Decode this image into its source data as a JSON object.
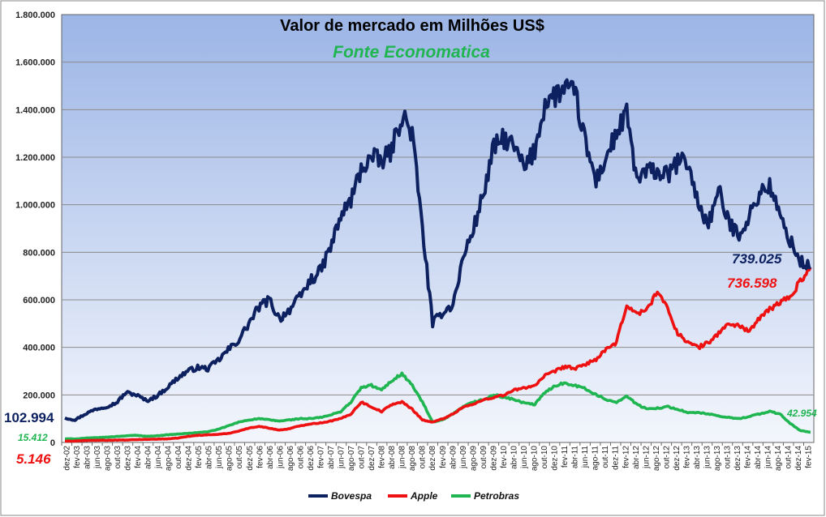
{
  "chart_data": {
    "type": "line",
    "title": "Valor de mercado em Milhões US$",
    "subtitle": "Fonte Economatica",
    "xlabel": "",
    "ylabel": "",
    "ylim": [
      0,
      1800000
    ],
    "y_ticks": [
      0,
      200000,
      400000,
      600000,
      800000,
      1000000,
      1200000,
      1400000,
      1600000,
      1800000
    ],
    "y_tick_labels": [
      "0",
      "200.000",
      "400.000",
      "600.000",
      "800.000",
      "1.000.000",
      "1.200.000",
      "1.400.000",
      "1.600.000",
      "1.800.000"
    ],
    "x_tick_labels": [
      "dez-02",
      "fev-03",
      "abr-03",
      "jun-03",
      "ago-03",
      "out-03",
      "dez-03",
      "fev-04",
      "abr-04",
      "jun-04",
      "ago-04",
      "out-04",
      "dez-04",
      "fev-05",
      "abr-05",
      "jun-05",
      "ago-05",
      "out-05",
      "dez-05",
      "fev-06",
      "abr-06",
      "jun-06",
      "ago-06",
      "out-06",
      "dez-06",
      "fev-07",
      "abr-07",
      "jun-07",
      "ago-07",
      "out-07",
      "dez-07",
      "fev-08",
      "abr-08",
      "jun-08",
      "ago-08",
      "out-08",
      "dez-08",
      "fev-09",
      "abr-09",
      "jun-09",
      "ago-09",
      "out-09",
      "dez-09",
      "fev-10",
      "abr-10",
      "jun-10",
      "ago-10",
      "out-10",
      "dez-10",
      "fev-11",
      "abr-11",
      "jun-11",
      "ago-11",
      "out-11",
      "dez-11",
      "fev-12",
      "abr-12",
      "jun-12",
      "ago-12",
      "out-12",
      "dez-12",
      "fev-13",
      "abr-13",
      "jun-13",
      "ago-13",
      "out-13",
      "dez-13",
      "fev-14",
      "abr-14",
      "jun-14",
      "ago-14",
      "out-14",
      "dez-14",
      "fev-15"
    ],
    "legend_position": "bottom",
    "grid": true,
    "series": [
      {
        "name": "Bovespa",
        "color": "#0d2160",
        "start_label": "102.994",
        "end_label": "739.025",
        "values": [
          102994,
          95000,
          120000,
          140000,
          150000,
          165000,
          210000,
          200000,
          175000,
          195000,
          230000,
          270000,
          300000,
          315000,
          310000,
          345000,
          390000,
          430000,
          500000,
          570000,
          600000,
          520000,
          560000,
          610000,
          680000,
          720000,
          820000,
          950000,
          1020000,
          1150000,
          1200000,
          1180000,
          1230000,
          1380000,
          1300000,
          900000,
          500000,
          550000,
          580000,
          780000,
          900000,
          1050000,
          1240000,
          1280000,
          1240000,
          1150000,
          1230000,
          1430000,
          1460000,
          1490000,
          1460000,
          1250000,
          1100000,
          1200000,
          1300000,
          1380000,
          1100000,
          1140000,
          1140000,
          1120000,
          1180000,
          1180000,
          1000000,
          920000,
          1060000,
          920000,
          880000,
          950000,
          1050000,
          1080000,
          950000,
          850000,
          760000,
          739025
        ]
      },
      {
        "name": "Apple",
        "color": "#ee1111",
        "start_label": "5.146",
        "end_label": "736.598",
        "values": [
          5146,
          6000,
          8000,
          9000,
          9000,
          10000,
          10000,
          12000,
          13000,
          14000,
          15000,
          18000,
          25000,
          30000,
          32000,
          34000,
          38000,
          48000,
          60000,
          68000,
          60000,
          52000,
          58000,
          70000,
          78000,
          82000,
          90000,
          100000,
          120000,
          170000,
          150000,
          130000,
          160000,
          170000,
          140000,
          95000,
          85000,
          100000,
          120000,
          150000,
          160000,
          180000,
          190000,
          200000,
          220000,
          230000,
          240000,
          280000,
          300000,
          320000,
          310000,
          330000,
          350000,
          390000,
          420000,
          580000,
          540000,
          560000,
          640000,
          560000,
          460000,
          420000,
          400000,
          420000,
          460000,
          500000,
          490000,
          470000,
          520000,
          560000,
          590000,
          610000,
          680000,
          736598
        ]
      },
      {
        "name": "Petrobras",
        "color": "#1fb550",
        "start_label": "15.412",
        "end_label": "42.954",
        "values": [
          15412,
          15000,
          18000,
          20000,
          22000,
          25000,
          28000,
          30000,
          26000,
          28000,
          32000,
          35000,
          38000,
          42000,
          45000,
          55000,
          70000,
          85000,
          95000,
          100000,
          95000,
          90000,
          95000,
          100000,
          100000,
          105000,
          115000,
          130000,
          170000,
          230000,
          240000,
          220000,
          260000,
          290000,
          240000,
          170000,
          85000,
          95000,
          120000,
          150000,
          170000,
          180000,
          200000,
          190000,
          180000,
          165000,
          160000,
          210000,
          240000,
          250000,
          240000,
          225000,
          200000,
          180000,
          170000,
          195000,
          160000,
          140000,
          145000,
          150000,
          140000,
          125000,
          125000,
          120000,
          110000,
          105000,
          100000,
          110000,
          120000,
          130000,
          120000,
          80000,
          50000,
          42954
        ]
      }
    ]
  }
}
